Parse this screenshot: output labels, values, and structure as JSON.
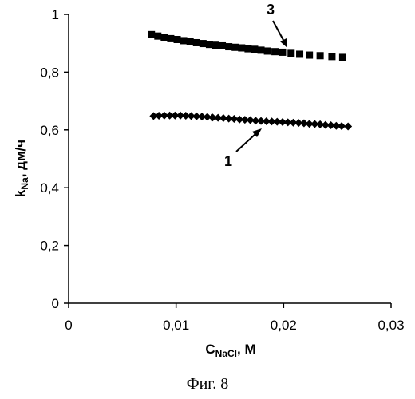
{
  "chart_data": {
    "type": "scatter",
    "xlabel": {
      "main": "C",
      "sub": "NaCl",
      "suffix": ", М"
    },
    "ylabel": {
      "main": "k",
      "sub": "Na",
      "suffix": ", дм/ч"
    },
    "xlim": [
      0,
      0.03
    ],
    "ylim": [
      0,
      1
    ],
    "x_ticks": [
      {
        "value": 0,
        "label": "0"
      },
      {
        "value": 0.01,
        "label": "0,01"
      },
      {
        "value": 0.02,
        "label": "0,02"
      },
      {
        "value": 0.03,
        "label": "0,03"
      }
    ],
    "y_ticks": [
      {
        "value": 0,
        "label": "0"
      },
      {
        "value": 0.2,
        "label": "0,2"
      },
      {
        "value": 0.4,
        "label": "0,4"
      },
      {
        "value": 0.6,
        "label": "0,6"
      },
      {
        "value": 0.8,
        "label": "0,8"
      },
      {
        "value": 1,
        "label": "1"
      }
    ],
    "grid": false,
    "series": [
      {
        "label": "3",
        "marker": "square",
        "color": "#000000",
        "x": [
          0.0077,
          0.0083,
          0.0089,
          0.0095,
          0.0101,
          0.0107,
          0.0113,
          0.0119,
          0.0125,
          0.0131,
          0.0137,
          0.0143,
          0.0149,
          0.0155,
          0.0161,
          0.0167,
          0.0173,
          0.0179,
          0.0185,
          0.0192,
          0.0199,
          0.0207,
          0.0215,
          0.0224,
          0.0234,
          0.0245,
          0.0255
        ],
        "y": [
          0.93,
          0.925,
          0.921,
          0.916,
          0.913,
          0.909,
          0.905,
          0.902,
          0.899,
          0.896,
          0.893,
          0.891,
          0.888,
          0.886,
          0.884,
          0.881,
          0.879,
          0.876,
          0.873,
          0.871,
          0.869,
          0.865,
          0.862,
          0.859,
          0.857,
          0.854,
          0.851
        ]
      },
      {
        "label": "1",
        "marker": "diamond",
        "color": "#000000",
        "x": [
          0.0079,
          0.0084,
          0.0089,
          0.0094,
          0.0099,
          0.0104,
          0.0109,
          0.0114,
          0.0119,
          0.0124,
          0.0129,
          0.0134,
          0.0139,
          0.0144,
          0.0149,
          0.0154,
          0.0159,
          0.0164,
          0.0169,
          0.0174,
          0.0179,
          0.0184,
          0.0189,
          0.0194,
          0.0199,
          0.0204,
          0.0209,
          0.0214,
          0.0219,
          0.0224,
          0.0229,
          0.0234,
          0.0239,
          0.0244,
          0.0249,
          0.0254,
          0.026
        ],
        "y": [
          0.648,
          0.649,
          0.65,
          0.65,
          0.65,
          0.65,
          0.649,
          0.648,
          0.647,
          0.646,
          0.645,
          0.643,
          0.642,
          0.641,
          0.639,
          0.638,
          0.636,
          0.635,
          0.634,
          0.632,
          0.631,
          0.63,
          0.629,
          0.628,
          0.627,
          0.626,
          0.625,
          0.624,
          0.623,
          0.621,
          0.62,
          0.619,
          0.617,
          0.616,
          0.614,
          0.613,
          0.612
        ]
      }
    ]
  },
  "caption": "Фиг. 8"
}
